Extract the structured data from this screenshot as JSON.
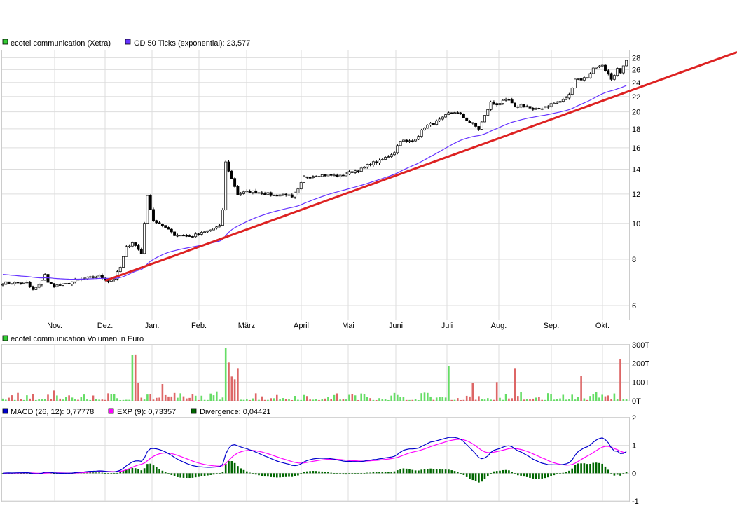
{
  "price_panel": {
    "legend": [
      {
        "label": "ecotel communication (Xetra)",
        "color": "#33cc33"
      },
      {
        "label": "GD 50 Ticks (exponential): 23,577",
        "color": "#6633ff"
      }
    ]
  },
  "volume_panel": {
    "legend": [
      {
        "label": "ecotel communication Volumen in Euro",
        "color": "#33cc33"
      }
    ]
  },
  "macd_panel": {
    "legend": [
      {
        "label": "MACD (26, 12): 0,77778",
        "color": "#0000cc"
      },
      {
        "label": "EXP (9): 0,73357",
        "color": "#ff00ff"
      },
      {
        "label": "Divergence: 0,04421",
        "color": "#006600"
      }
    ]
  },
  "colors": {
    "up": "#33cc33",
    "down": "#cc3333",
    "candle_up": "#ffffff",
    "candle_down": "#000000",
    "ema": "#6633ff",
    "trendline": "#dd2222",
    "macd": "#0000cc",
    "signal": "#ff00ff",
    "divergence": "#006600",
    "vol_up": "#66dd66",
    "vol_down": "#dd6666",
    "grid": "#dddddd"
  },
  "chart_data": [
    {
      "type": "line",
      "subtype": "candlestick",
      "months": [
        "Nov.",
        "Dez.",
        "Jan.",
        "Feb.",
        "März",
        "April",
        "Mai",
        "Juni",
        "Juli",
        "Aug.",
        "Sep.",
        "Okt."
      ],
      "y_ticks": [
        6,
        8,
        10,
        12,
        14,
        16,
        18,
        20,
        22,
        24,
        26,
        28
      ],
      "y_scale": "log",
      "ylim": [
        5.5,
        29.3
      ],
      "price_anchors": [
        [
          0,
          6.9
        ],
        [
          8,
          6.9
        ],
        [
          10,
          6.6
        ],
        [
          12,
          6.8
        ],
        [
          14,
          7.3
        ],
        [
          15,
          6.9
        ],
        [
          17,
          6.8
        ],
        [
          20,
          6.8
        ],
        [
          24,
          7.0
        ],
        [
          28,
          7.1
        ],
        [
          32,
          7.2
        ],
        [
          35,
          7.0
        ],
        [
          37,
          7.1
        ],
        [
          39,
          7.6
        ],
        [
          41,
          8.6
        ],
        [
          43,
          8.9
        ],
        [
          46,
          8.3
        ],
        [
          48,
          11.8
        ],
        [
          50,
          10.2
        ],
        [
          53,
          9.8
        ],
        [
          55,
          9.7
        ],
        [
          57,
          9.3
        ],
        [
          60,
          9.3
        ],
        [
          62,
          9.2
        ],
        [
          66,
          9.4
        ],
        [
          69,
          9.6
        ],
        [
          70,
          9.7
        ],
        [
          72,
          9.8
        ],
        [
          73,
          10.9
        ],
        [
          74,
          14.6
        ],
        [
          76,
          13.2
        ],
        [
          78,
          12.0
        ],
        [
          82,
          12.2
        ],
        [
          86,
          12.1
        ],
        [
          90,
          11.9
        ],
        [
          94,
          12.0
        ],
        [
          96,
          11.7
        ],
        [
          98,
          12.3
        ],
        [
          100,
          13.3
        ],
        [
          104,
          13.5
        ],
        [
          108,
          13.5
        ],
        [
          112,
          13.4
        ],
        [
          116,
          13.8
        ],
        [
          119,
          14.0
        ],
        [
          122,
          14.5
        ],
        [
          125,
          14.7
        ],
        [
          128,
          15.2
        ],
        [
          130,
          15.6
        ],
        [
          132,
          16.8
        ],
        [
          134,
          16.6
        ],
        [
          136,
          16.7
        ],
        [
          138,
          17.3
        ],
        [
          140,
          18.2
        ],
        [
          142,
          18.5
        ],
        [
          144,
          18.8
        ],
        [
          146,
          19.2
        ],
        [
          148,
          19.8
        ],
        [
          150,
          20.0
        ],
        [
          152,
          19.6
        ],
        [
          154,
          19.0
        ],
        [
          156,
          18.5
        ],
        [
          158,
          18.0
        ],
        [
          160,
          19.5
        ],
        [
          162,
          21.2
        ],
        [
          164,
          21.0
        ],
        [
          166,
          21.3
        ],
        [
          168,
          21.5
        ],
        [
          170,
          20.5
        ],
        [
          172,
          20.9
        ],
        [
          174,
          20.7
        ],
        [
          176,
          20.2
        ],
        [
          178,
          20.4
        ],
        [
          180,
          20.6
        ],
        [
          182,
          21.0
        ],
        [
          184,
          21.2
        ],
        [
          186,
          21.5
        ],
        [
          188,
          22.2
        ],
        [
          190,
          24.6
        ],
        [
          192,
          24.5
        ],
        [
          194,
          24.8
        ],
        [
          196,
          26.2
        ],
        [
          198,
          26.8
        ],
        [
          199,
          26.6
        ],
        [
          200,
          25.7
        ],
        [
          201,
          25.2
        ],
        [
          202,
          24.3
        ],
        [
          203,
          25.0
        ],
        [
          204,
          26.0
        ],
        [
          205,
          25.7
        ],
        [
          206,
          26.5
        ],
        [
          207,
          27.5
        ]
      ],
      "ema_value": 23.577,
      "trendline": {
        "from": [
          34,
          7.0
        ],
        "to": [
          248,
          29.0
        ]
      }
    },
    {
      "type": "bar",
      "title": "ecotel communication Volumen in Euro",
      "y_ticks": [
        "0T",
        "100T",
        "200T",
        "300T"
      ],
      "ylim": [
        0,
        300
      ],
      "unit": "T Euro",
      "peaks": [
        {
          "i": 43,
          "v": 245
        },
        {
          "i": 44,
          "v": 248
        },
        {
          "i": 45,
          "v": 95
        },
        {
          "i": 53,
          "v": 90
        },
        {
          "i": 74,
          "v": 285
        },
        {
          "i": 75,
          "v": 205
        },
        {
          "i": 76,
          "v": 130
        },
        {
          "i": 77,
          "v": 115
        },
        {
          "i": 78,
          "v": 175
        },
        {
          "i": 148,
          "v": 185
        },
        {
          "i": 156,
          "v": 95
        },
        {
          "i": 164,
          "v": 100
        },
        {
          "i": 170,
          "v": 175
        },
        {
          "i": 192,
          "v": 135
        },
        {
          "i": 205,
          "v": 225
        }
      ],
      "base_level": 25
    },
    {
      "type": "line",
      "y_ticks": [
        -1,
        0,
        1,
        2
      ],
      "ylim": [
        -1,
        2
      ],
      "series": [
        {
          "name": "MACD (26, 12)",
          "last": 0.77778
        },
        {
          "name": "EXP (9)",
          "last": 0.73357
        },
        {
          "name": "Divergence",
          "last": 0.04421
        }
      ]
    }
  ]
}
